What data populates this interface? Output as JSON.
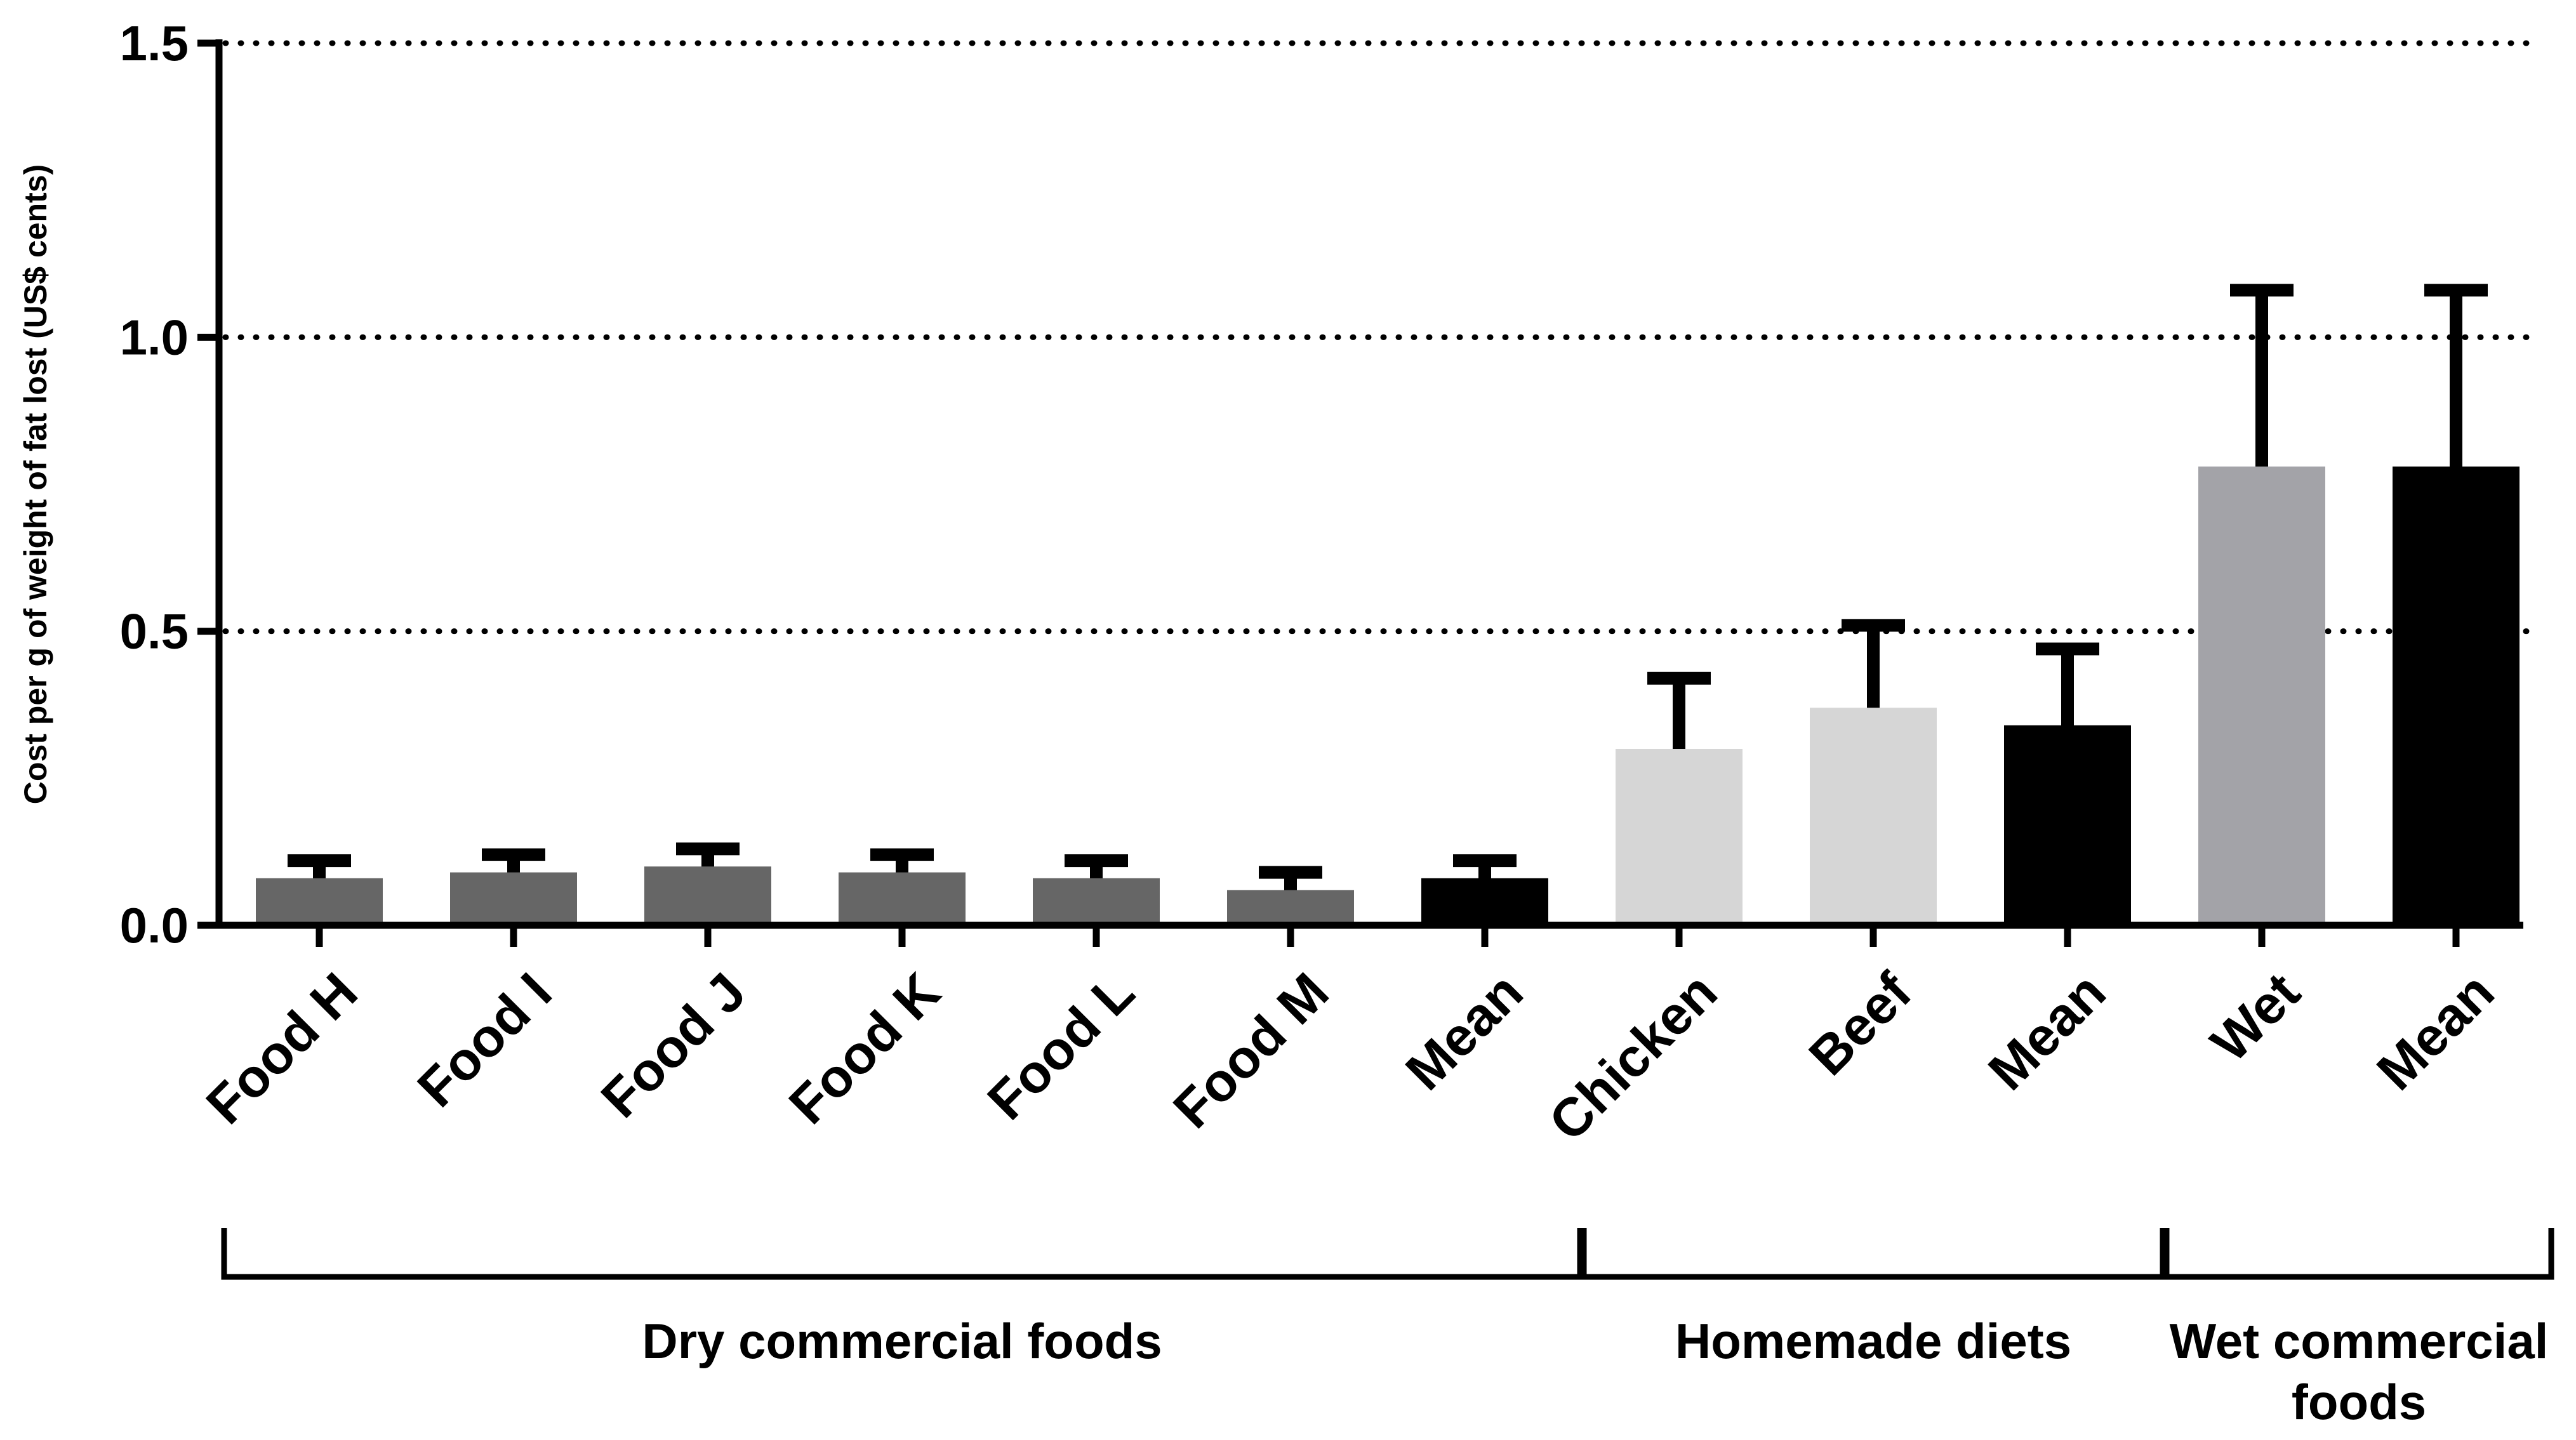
{
  "chart_data": {
    "type": "bar",
    "title": "",
    "xlabel": "",
    "ylabel": "Cost per g of weight of fat lost (US$ cents)",
    "ylim": [
      0,
      1.5
    ],
    "yticks": [
      0.0,
      0.5,
      1.0,
      1.5
    ],
    "ytick_labels": [
      "0.0",
      "0.5",
      "1.0",
      "1.5"
    ],
    "grid": "dotted horizontal at 0.5, 1.0, 1.5",
    "categories": [
      "Food H",
      "Food I",
      "Food J",
      "Food K",
      "Food L",
      "Food M",
      "Mean",
      "Chicken",
      "Beef",
      "Mean",
      "Wet",
      "Mean"
    ],
    "values": [
      0.08,
      0.09,
      0.1,
      0.09,
      0.08,
      0.06,
      0.08,
      0.3,
      0.37,
      0.34,
      0.78,
      0.78
    ],
    "error_upper": [
      0.11,
      0.12,
      0.13,
      0.12,
      0.11,
      0.09,
      0.11,
      0.42,
      0.51,
      0.47,
      1.08,
      1.08
    ],
    "bar_colors": [
      "#666666",
      "#666666",
      "#666666",
      "#666666",
      "#666666",
      "#666666",
      "#000000",
      "#d6d6d6",
      "#d6d6d6",
      "#000000",
      "#a3a3a8",
      "#000000"
    ],
    "groups": [
      {
        "label": "Dry commercial foods",
        "lines": [
          "Dry commercial foods"
        ],
        "start": 0,
        "end": 6
      },
      {
        "label": "Homemade diets",
        "lines": [
          "Homemade diets"
        ],
        "start": 7,
        "end": 9
      },
      {
        "label": "Wet commercial foods",
        "lines": [
          "Wet commercial",
          "foods"
        ],
        "start": 10,
        "end": 11
      }
    ]
  }
}
